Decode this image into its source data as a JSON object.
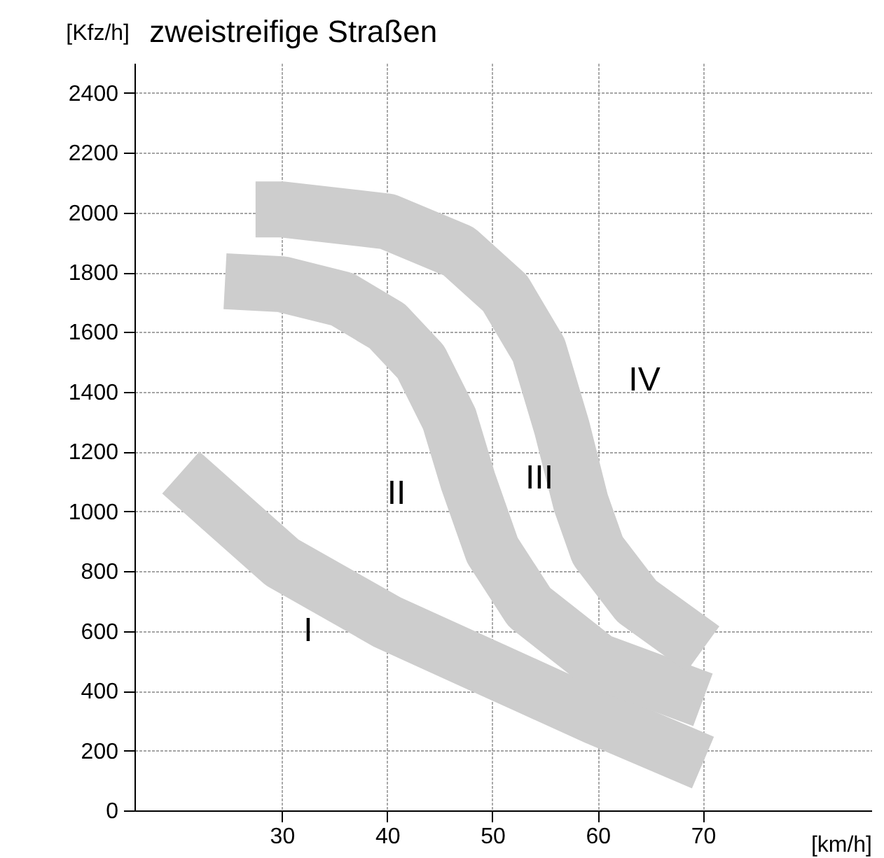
{
  "chart_data": {
    "type": "line",
    "title": "zweistreifige Straßen",
    "xlabel": "[km/h]",
    "ylabel": "[Kfz/h]",
    "xlim": [
      16,
      86
    ],
    "xticks": [
      30,
      40,
      50,
      60,
      70
    ],
    "ylim": [
      0,
      2500
    ],
    "yticks": [
      0,
      200,
      400,
      600,
      800,
      1000,
      1200,
      1400,
      1600,
      1800,
      2000,
      2200,
      2400
    ],
    "grid": true,
    "line_style": "solid",
    "series": [
      {
        "color": "#cdcdcd",
        "x": [
          20.4,
          30,
          40,
          50,
          60,
          70
        ],
        "values": [
          1130,
          830,
          630,
          470,
          310,
          160
        ]
      },
      {
        "color": "#cdcdcd",
        "x": [
          24.6,
          30,
          35.7,
          40,
          43.2,
          45.9,
          47.7,
          50,
          53.5,
          60,
          70
        ],
        "values": [
          1770,
          1760,
          1710,
          1620,
          1500,
          1310,
          1100,
          870,
          680,
          500,
          370
        ]
      },
      {
        "color": "#cdcdcd",
        "x": [
          27.5,
          30,
          40,
          46.8,
          51.2,
          54.4,
          56.6,
          58.4,
          60,
          63.7,
          70
        ],
        "values": [
          2010,
          2010,
          1970,
          1870,
          1730,
          1540,
          1280,
          1030,
          870,
          700,
          540
        ]
      }
    ],
    "annotations": [
      "I",
      "II",
      "III",
      "IV"
    ]
  }
}
